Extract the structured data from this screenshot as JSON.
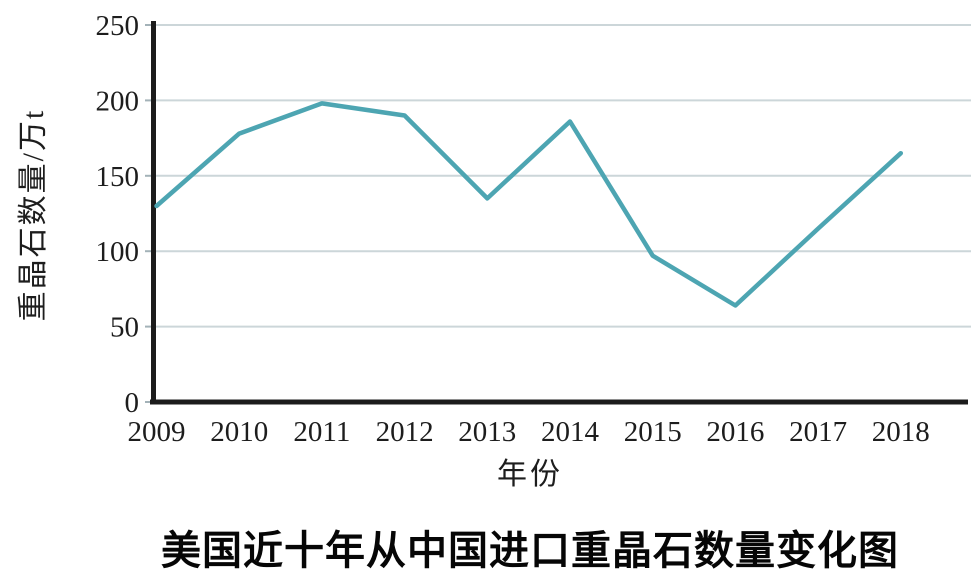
{
  "chart_data": {
    "type": "line",
    "title": "美国近十年从中国进口重晶石数量变化图",
    "xlabel": "年份",
    "ylabel": "重晶石数量/万t",
    "x": [
      2009,
      2010,
      2011,
      2012,
      2013,
      2014,
      2015,
      2016,
      2017,
      2018
    ],
    "values": [
      130,
      178,
      198,
      190,
      135,
      186,
      97,
      64,
      115,
      165
    ],
    "ylim": [
      0,
      250
    ],
    "yticks": [
      0,
      50,
      100,
      150,
      200,
      250
    ],
    "grid": true,
    "legend_position": "none",
    "line_color": "#4da5b2"
  },
  "colors": {
    "line": "#4da5b2",
    "grid": "#ccd6d9",
    "tick": "#a3b2b8",
    "axis": "#1c1c1c",
    "text": "#1d1d1d",
    "title": "#060606",
    "background": "#ffffff"
  }
}
